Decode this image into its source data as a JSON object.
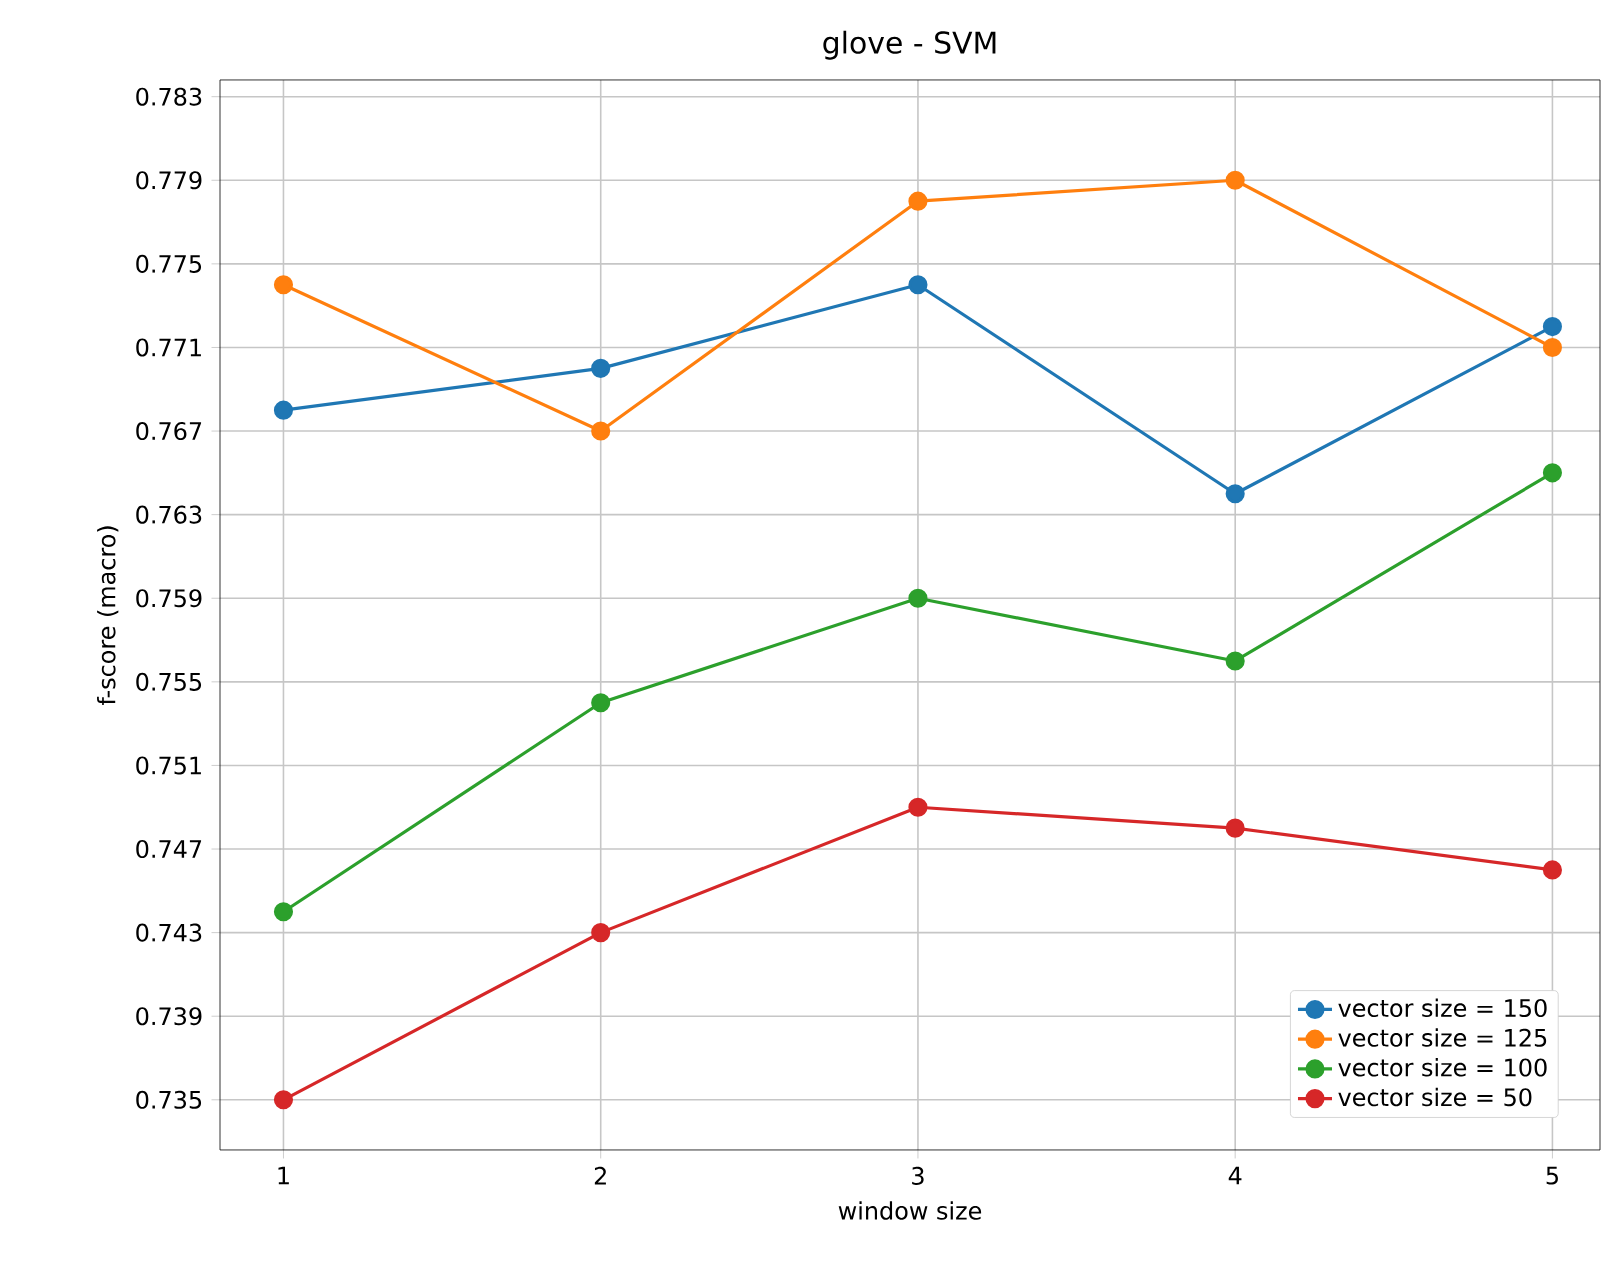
{
  "chart_data": {
    "type": "line",
    "title": "glove - SVM",
    "xlabel": "window size",
    "ylabel": "f-score (macro)",
    "x": [
      1,
      2,
      3,
      4,
      5
    ],
    "series": [
      {
        "name": "vector size = 150",
        "color": "#1f77b4",
        "values": [
          0.768,
          0.77,
          0.774,
          0.764,
          0.772
        ]
      },
      {
        "name": "vector size = 125",
        "color": "#ff7f0e",
        "values": [
          0.774,
          0.767,
          0.778,
          0.779,
          0.771
        ]
      },
      {
        "name": "vector size = 100",
        "color": "#2ca02c",
        "values": [
          0.744,
          0.754,
          0.759,
          0.756,
          0.765
        ]
      },
      {
        "name": "vector size = 50",
        "color": "#d62728",
        "values": [
          0.735,
          0.743,
          0.749,
          0.748,
          0.746
        ]
      }
    ],
    "xlim": [
      0.8,
      5.15
    ],
    "ylim": [
      0.7326,
      0.7838
    ],
    "xticks": [
      1,
      2,
      3,
      4,
      5
    ],
    "yticks": [
      0.735,
      0.739,
      0.743,
      0.747,
      0.751,
      0.755,
      0.759,
      0.763,
      0.767,
      0.771,
      0.775,
      0.779,
      0.783
    ],
    "grid": true,
    "legend": "bottom right",
    "marker": "circle",
    "line_style": "solid"
  }
}
